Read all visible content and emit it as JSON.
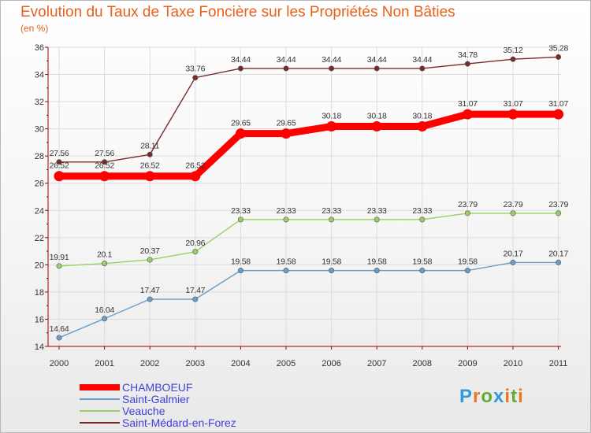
{
  "title": "Evolution du Taux de Taxe Foncière sur les Propriétés Non Bâties",
  "unit_label": "(en %)",
  "logo": {
    "letters": [
      "P",
      "r",
      "o",
      "x",
      "i",
      "t",
      "i"
    ],
    "colors": [
      "#3399dd",
      "#e87722",
      "#66aa33",
      "#3399dd",
      "#e87722",
      "#66aa33",
      "#e87722"
    ]
  },
  "chart_data": {
    "type": "line",
    "title": "Evolution du Taux de Taxe Foncière sur les Propriétés Non Bâties",
    "ylabel": "(en %)",
    "xlabel": "",
    "x": [
      "2000",
      "2001",
      "2002",
      "2003",
      "2004",
      "2005",
      "2006",
      "2007",
      "2008",
      "2009",
      "2010",
      "2011"
    ],
    "ylim": [
      14,
      36
    ],
    "yticks": [
      14,
      16,
      18,
      20,
      22,
      24,
      26,
      28,
      30,
      32,
      34,
      36
    ],
    "grid": true,
    "legend_position": "bottom-left",
    "series": [
      {
        "name": "CHAMBOEUF",
        "color": "#ff0000",
        "emphasis": true,
        "values": [
          26.52,
          26.52,
          26.52,
          26.52,
          29.65,
          29.65,
          30.18,
          30.18,
          30.18,
          31.07,
          31.07,
          31.07
        ],
        "labels": [
          "26.52",
          "26.52",
          "26.52",
          "26.52",
          "29.65",
          "29.65",
          "30.18",
          "30.18",
          "30.18",
          "31.07",
          "31.07",
          "31.07"
        ]
      },
      {
        "name": "Saint-Galmier",
        "color": "#6a9ec8",
        "emphasis": false,
        "values": [
          14.64,
          16.04,
          17.47,
          17.47,
          19.58,
          19.58,
          19.58,
          19.58,
          19.58,
          19.58,
          20.17,
          20.17
        ],
        "labels": [
          "14.64",
          "16.04",
          "17.47",
          "17.47",
          "19.58",
          "19.58",
          "19.58",
          "19.58",
          "19.58",
          "19.58",
          "20.17",
          "20.17"
        ]
      },
      {
        "name": "Veauche",
        "color": "#99d066",
        "emphasis": false,
        "values": [
          19.91,
          20.1,
          20.37,
          20.96,
          23.33,
          23.33,
          23.33,
          23.33,
          23.33,
          23.79,
          23.79,
          23.79
        ],
        "labels": [
          "19.91",
          "20.1",
          "20.37",
          "20.96",
          "23.33",
          "23.33",
          "23.33",
          "23.33",
          "23.33",
          "23.79",
          "23.79",
          "23.79"
        ]
      },
      {
        "name": "Saint-Médard-en-Forez",
        "color": "#7a2a2a",
        "emphasis": false,
        "values": [
          27.56,
          27.56,
          28.11,
          33.76,
          34.44,
          34.44,
          34.44,
          34.44,
          34.44,
          34.78,
          35.12,
          35.28
        ],
        "labels": [
          "27.56",
          "27.56",
          "28.11",
          "33.76",
          "34.44",
          "34.44",
          "34.44",
          "34.44",
          "34.44",
          "34.78",
          "35.12",
          "35.28"
        ]
      }
    ]
  }
}
